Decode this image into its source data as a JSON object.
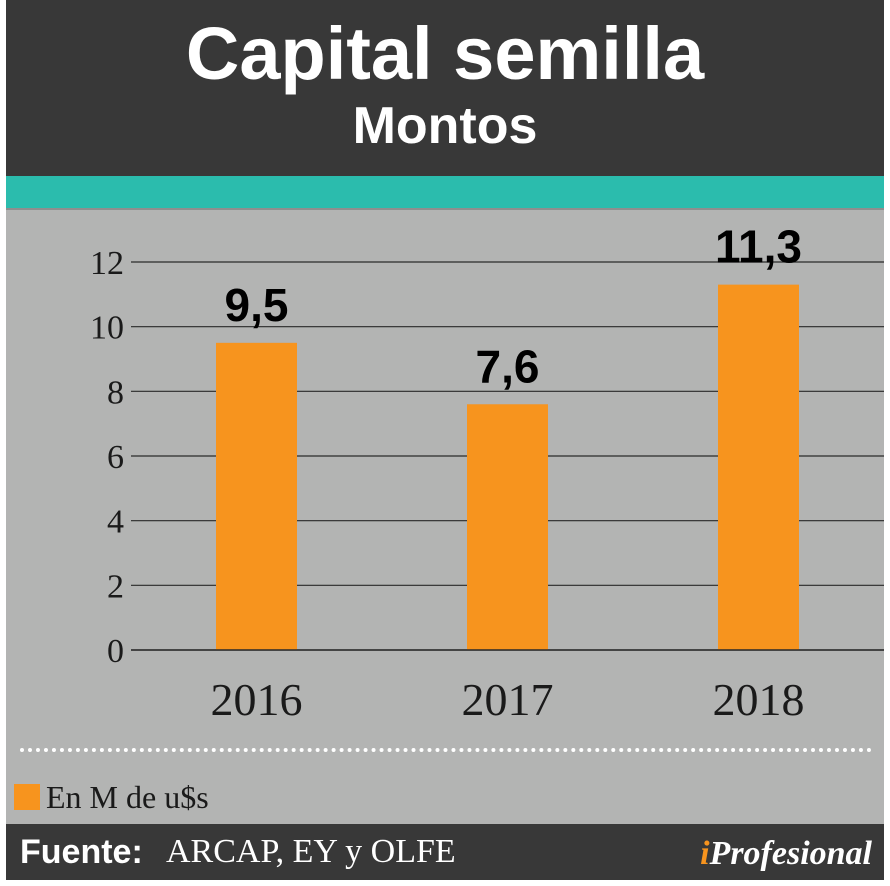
{
  "header": {
    "title": "Capital semilla",
    "subtitle": "Montos"
  },
  "legend": {
    "label": "En M de u$s",
    "color": "#f7941e"
  },
  "footer": {
    "source_key": "Fuente:",
    "source_value": "ARCAP, EY y OLFE",
    "logo_i": "i",
    "logo_rest": "Profesional"
  },
  "colors": {
    "header_bg": "#383838",
    "accent_band": "#2bbcad",
    "plot_bg": "#b3b4b3",
    "bar": "#f7941e"
  },
  "chart_data": {
    "type": "bar",
    "categories": [
      "2016",
      "2017",
      "2018"
    ],
    "values": [
      9.5,
      7.6,
      11.3
    ],
    "value_labels": [
      "9,5",
      "7,6",
      "11,3"
    ],
    "ylim": [
      0,
      12
    ],
    "yticks": [
      0,
      2,
      4,
      6,
      8,
      10,
      12
    ],
    "grid": true
  }
}
